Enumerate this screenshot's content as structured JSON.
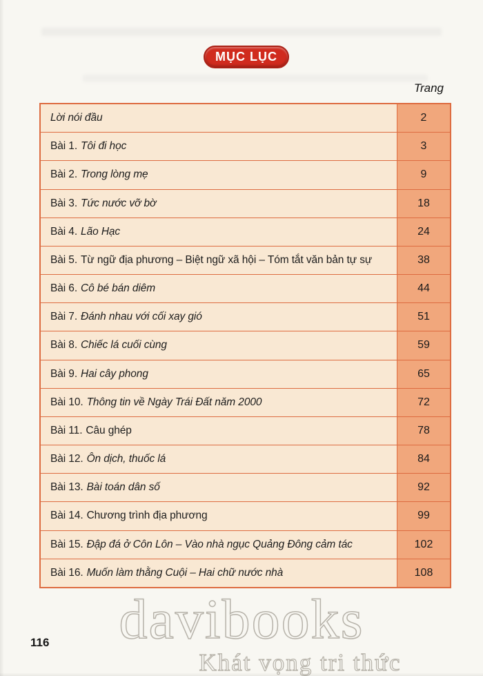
{
  "page": {
    "title_badge": "MỤC LỤC",
    "column_header": "Trang",
    "footer_page_number": "116"
  },
  "colors": {
    "badge_red": "#d02b1e",
    "table_border": "#dd6b40",
    "row_background": "#f9e8d3",
    "page_column_background": "#f1a77c"
  },
  "toc": {
    "rows": [
      {
        "prefix": "",
        "title": "Lời nói đầu",
        "title_italic": true,
        "page": "2"
      },
      {
        "prefix": "Bài 1.",
        "title": "Tôi đi học",
        "title_italic": true,
        "page": "3"
      },
      {
        "prefix": "Bài 2.",
        "title": "Trong lòng mẹ",
        "title_italic": true,
        "page": "9"
      },
      {
        "prefix": "Bài 3.",
        "title": "Tức nước vỡ bờ",
        "title_italic": true,
        "page": "18"
      },
      {
        "prefix": "Bài 4.",
        "title": "Lão Hạc",
        "title_italic": true,
        "page": "24"
      },
      {
        "prefix": "Bài 5.",
        "title": "Từ ngữ địa phương – Biệt ngữ xã hội – Tóm tắt văn bản tự sự",
        "title_italic": false,
        "page": "38"
      },
      {
        "prefix": "Bài 6.",
        "title": "Cô bé bán diêm",
        "title_italic": true,
        "page": "44"
      },
      {
        "prefix": "Bài 7.",
        "title": "Đánh nhau với cối xay gió",
        "title_italic": true,
        "page": "51"
      },
      {
        "prefix": "Bài 8.",
        "title": "Chiếc lá cuối cùng",
        "title_italic": true,
        "page": "59"
      },
      {
        "prefix": "Bài 9.",
        "title": "Hai cây phong",
        "title_italic": true,
        "page": "65"
      },
      {
        "prefix": "Bài 10.",
        "title": "Thông tin về Ngày Trái Đất năm 2000",
        "title_italic": true,
        "page": "72"
      },
      {
        "prefix": "Bài 11.",
        "title": "Câu ghép",
        "title_italic": false,
        "page": "78"
      },
      {
        "prefix": "Bài 12.",
        "title": "Ôn dịch, thuốc lá",
        "title_italic": true,
        "page": "84"
      },
      {
        "prefix": "Bài 13.",
        "title": "Bài toán dân số",
        "title_italic": true,
        "page": "92"
      },
      {
        "prefix": "Bài 14.",
        "title": "Chương trình địa phương",
        "title_italic": false,
        "page": "99"
      },
      {
        "prefix": "Bài 15.",
        "title": "Đập đá ở Côn Lôn – Vào nhà ngục Quảng Đông cảm tác",
        "title_italic": true,
        "page": "102"
      },
      {
        "prefix": "Bài 16.",
        "title": "Muốn làm thằng Cuội – Hai chữ nước nhà",
        "title_italic": true,
        "page": "108"
      }
    ]
  },
  "watermark": {
    "line1": "davibooks",
    "line2": "Khát vọng tri thức"
  }
}
